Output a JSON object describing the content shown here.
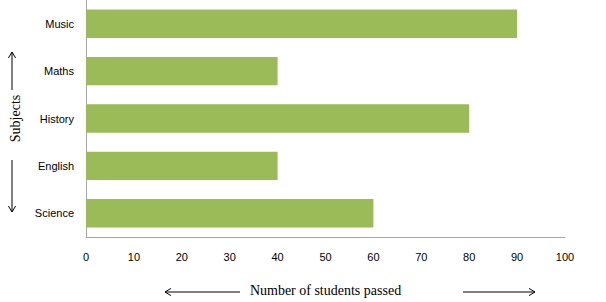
{
  "chart_data": {
    "type": "bar",
    "orientation": "horizontal",
    "x_label": "Number of students passed",
    "y_label": "Subjects",
    "categories": [
      "Science",
      "English",
      "History",
      "Maths",
      "Music"
    ],
    "values": [
      60,
      40,
      80,
      40,
      90
    ],
    "color": "#9bbb59",
    "xlim": [
      0,
      100
    ],
    "xticks": [
      0,
      10,
      20,
      30,
      40,
      50,
      60,
      70,
      80,
      90,
      100
    ],
    "grid": false
  }
}
